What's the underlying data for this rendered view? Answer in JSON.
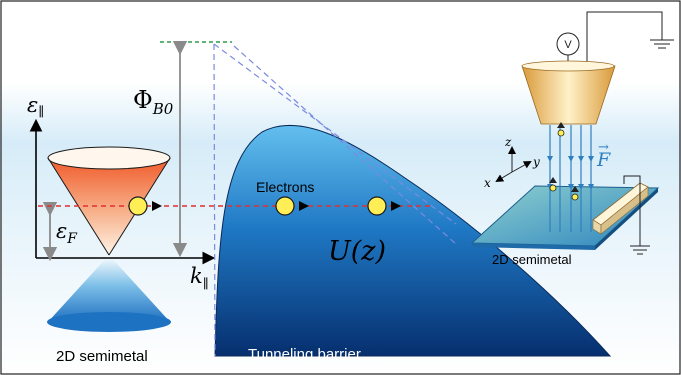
{
  "labels": {
    "energy_axis": "ε",
    "energy_axis_sub": "∥",
    "momentum_axis": "k",
    "momentum_axis_sub": "∥",
    "fermi": "ε",
    "fermi_sub": "F",
    "barrier_height": "Φ",
    "barrier_height_sub": "B0",
    "electrons": "Electrons",
    "potential": "U(z)",
    "left_caption": "2D semimetal",
    "barrier_caption": "Tunneling barrier",
    "right_caption": "2D semimetal",
    "voltmeter": "V",
    "axis_z": "z",
    "axis_y": "y",
    "axis_x": "x",
    "field": "F",
    "field_arrow": "→"
  },
  "colors": {
    "electron": "#ffee55",
    "fermi_line": "#e03030",
    "barrier_top": "#5bb6e6",
    "barrier_bottom": "#0a3e84",
    "field": "#2f7fc0"
  }
}
